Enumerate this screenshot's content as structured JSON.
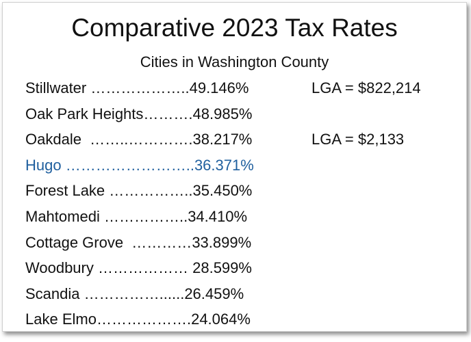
{
  "slide": {
    "title": "Comparative 2023 Tax Rates",
    "subtitle": "Cities in Washington County",
    "rows": [
      {
        "name": "Stillwater",
        "leader": " ………………..",
        "rate": "49.146%",
        "note": "LGA = $822,214"
      },
      {
        "name": "Oak Park Heights",
        "leader": "……….",
        "rate": "48.985%"
      },
      {
        "name": "Oakdale",
        "leader": "  ……..………….",
        "rate": "38.217%",
        "note": "LGA = $2,133"
      },
      {
        "name": "Hugo",
        "leader": " ……………………..",
        "rate": "36.371%",
        "color": "#1f5f9e"
      },
      {
        "name": "Forest Lake",
        "leader": " ……………..",
        "rate": "35.450%"
      },
      {
        "name": "Mahtomedi",
        "leader": " ……………..",
        "rate": "34.410%"
      },
      {
        "name": "Cottage Grove",
        "leader": "  …………",
        "rate": "33.899%"
      },
      {
        "name": "Woodbury",
        "leader": " ……………… ",
        "rate": "28.599%"
      },
      {
        "name": "Scandia",
        "leader": " ……………......",
        "rate": "26.459%"
      },
      {
        "name": "Lake Elmo",
        "leader": "……………….",
        "rate": "24.064%"
      }
    ]
  }
}
